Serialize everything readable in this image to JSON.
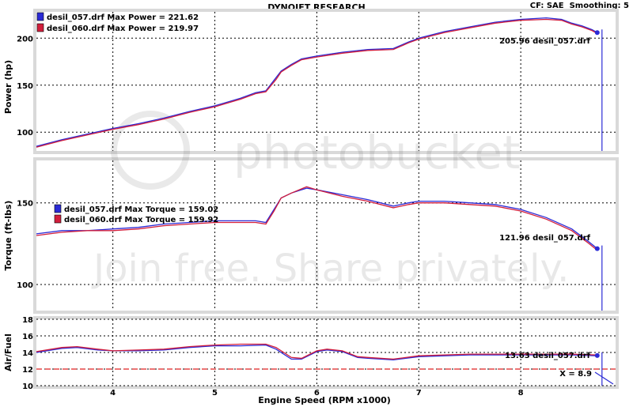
{
  "header": {
    "title": "DYNOJET RESEARCH",
    "settings": "CF: SAE  Smoothing: 5"
  },
  "colors": {
    "run_057": "#2b2bd6",
    "run_060": "#d21e3c",
    "panel_bg": "#ffffff",
    "frame": "#d9d9d9",
    "grid": "#000000",
    "ref_line": "#e02020"
  },
  "watermark": {
    "brand": "photobucket",
    "slogan": "Join free. Share privately."
  },
  "chart_data": [
    {
      "type": "line",
      "id": "power",
      "ylabel": "Power (hp)",
      "ylim": [
        80,
        228
      ],
      "yticks": [
        100,
        150,
        200
      ],
      "xlim": [
        3.25,
        8.93
      ],
      "grid": true,
      "legend": [
        {
          "text": "desil_057.drf Max Power = 221.62",
          "series": "desil_057.drf"
        },
        {
          "text": "desil_060.drf Max Power = 219.97",
          "series": "desil_060.drf"
        }
      ],
      "cursor_label": "205.96 desil_057.drf",
      "cursor_value": 205.96,
      "series": [
        {
          "name": "desil_057.drf",
          "x": [
            3.25,
            3.5,
            3.75,
            4.0,
            4.25,
            4.5,
            4.75,
            5.0,
            5.25,
            5.4,
            5.5,
            5.6,
            5.65,
            5.75,
            5.85,
            6.0,
            6.25,
            6.5,
            6.75,
            6.9,
            7.0,
            7.25,
            7.5,
            7.75,
            8.0,
            8.25,
            8.4,
            8.5,
            8.6,
            8.7,
            8.75
          ],
          "y": [
            85,
            92,
            98,
            104,
            109,
            115,
            122,
            128,
            136,
            142,
            144,
            158,
            165,
            172,
            178,
            181,
            185,
            188,
            189,
            196,
            200,
            207,
            212,
            217,
            220,
            221.6,
            220,
            216,
            213,
            209,
            206
          ]
        },
        {
          "name": "desil_060.drf",
          "x": [
            3.25,
            3.5,
            3.75,
            4.0,
            4.25,
            4.5,
            4.75,
            5.0,
            5.25,
            5.4,
            5.5,
            5.6,
            5.65,
            5.75,
            5.85,
            6.0,
            6.25,
            6.5,
            6.75,
            6.9,
            7.0,
            7.25,
            7.5,
            7.75,
            8.0,
            8.25,
            8.4,
            8.5,
            8.6,
            8.7,
            8.75
          ],
          "y": [
            84,
            91,
            97,
            103,
            108,
            114,
            121,
            127,
            135,
            141,
            143,
            156,
            164,
            171,
            177,
            180,
            184,
            187,
            188,
            195,
            199,
            206,
            211,
            216,
            219,
            220,
            219,
            215,
            212,
            208,
            205
          ]
        }
      ]
    },
    {
      "type": "line",
      "id": "torque",
      "ylabel": "Torque (ft-lbs)",
      "ylim": [
        84,
        176
      ],
      "yticks": [
        100,
        150
      ],
      "xlim": [
        3.25,
        8.93
      ],
      "grid": true,
      "legend": [
        {
          "text": "desil_057.drf Max Torque = 159.02",
          "series": "desil_057.drf"
        },
        {
          "text": "desil_060.drf Max Torque = 159.92",
          "series": "desil_060.drf"
        }
      ],
      "cursor_label": "121.96 desil_057.drf",
      "cursor_value": 121.96,
      "series": [
        {
          "name": "desil_057.drf",
          "x": [
            3.25,
            3.5,
            3.75,
            4.0,
            4.25,
            4.5,
            4.75,
            5.0,
            5.25,
            5.4,
            5.5,
            5.58,
            5.65,
            5.75,
            5.9,
            6.0,
            6.25,
            6.5,
            6.75,
            6.9,
            7.0,
            7.25,
            7.5,
            7.75,
            8.0,
            8.25,
            8.5,
            8.65,
            8.75
          ],
          "y": [
            131,
            133,
            133,
            134,
            135,
            137,
            138,
            139,
            139,
            139,
            138,
            146,
            153,
            156,
            159,
            158,
            155,
            152,
            148,
            150,
            151,
            151,
            150,
            149,
            146,
            141,
            134,
            127,
            122
          ]
        },
        {
          "name": "desil_060.drf",
          "x": [
            3.25,
            3.5,
            3.75,
            4.0,
            4.25,
            4.5,
            4.75,
            5.0,
            5.25,
            5.4,
            5.5,
            5.58,
            5.65,
            5.75,
            5.9,
            6.0,
            6.25,
            6.5,
            6.75,
            6.9,
            7.0,
            7.25,
            7.5,
            7.75,
            8.0,
            8.25,
            8.5,
            8.65,
            8.75
          ],
          "y": [
            130,
            132,
            133,
            133,
            134,
            136,
            137,
            138,
            138,
            138,
            137,
            145,
            153,
            156,
            159.9,
            158,
            154,
            151,
            147,
            149,
            150,
            150,
            149,
            148,
            145,
            140,
            133,
            126,
            121
          ]
        }
      ]
    },
    {
      "type": "line",
      "id": "afr",
      "ylabel": "Air/Fuel",
      "ylim": [
        10,
        18
      ],
      "yticks": [
        10,
        12,
        14,
        16,
        18
      ],
      "xlim": [
        3.25,
        8.93
      ],
      "xlabel": "Engine Speed (RPM x1000)",
      "xticks": [
        4,
        5,
        6,
        7,
        8
      ],
      "grid": true,
      "reference_line": 12,
      "cursor_label": "13.63 desil_057.drf",
      "cursor_value": 13.63,
      "x_readout": "X = 8.9",
      "series": [
        {
          "name": "desil_057.drf",
          "x": [
            3.25,
            3.5,
            3.65,
            3.85,
            4.0,
            4.25,
            4.5,
            4.75,
            5.0,
            5.25,
            5.5,
            5.6,
            5.75,
            5.85,
            6.0,
            6.1,
            6.25,
            6.4,
            6.5,
            6.75,
            7.0,
            7.25,
            7.5,
            7.75,
            8.0,
            8.25,
            8.5,
            8.75
          ],
          "y": [
            14.0,
            14.5,
            14.6,
            14.3,
            14.2,
            14.2,
            14.3,
            14.6,
            14.8,
            14.8,
            14.9,
            14.4,
            13.2,
            13.2,
            14.1,
            14.3,
            14.1,
            13.4,
            13.3,
            13.1,
            13.5,
            13.6,
            13.7,
            13.7,
            13.7,
            13.7,
            13.7,
            13.6
          ]
        },
        {
          "name": "desil_060.drf",
          "x": [
            3.25,
            3.5,
            3.65,
            3.85,
            4.0,
            4.25,
            4.5,
            4.75,
            5.0,
            5.25,
            5.5,
            5.6,
            5.75,
            5.85,
            6.0,
            6.1,
            6.25,
            6.4,
            6.5,
            6.75,
            7.0,
            7.25,
            7.5,
            7.75,
            8.0,
            8.25,
            8.5,
            8.75
          ],
          "y": [
            14.1,
            14.6,
            14.7,
            14.4,
            14.2,
            14.3,
            14.4,
            14.7,
            14.9,
            15.0,
            15.0,
            14.6,
            13.4,
            13.3,
            14.2,
            14.4,
            14.2,
            13.5,
            13.4,
            13.2,
            13.6,
            13.7,
            13.8,
            13.8,
            13.8,
            13.8,
            13.8,
            13.7
          ]
        }
      ]
    }
  ]
}
